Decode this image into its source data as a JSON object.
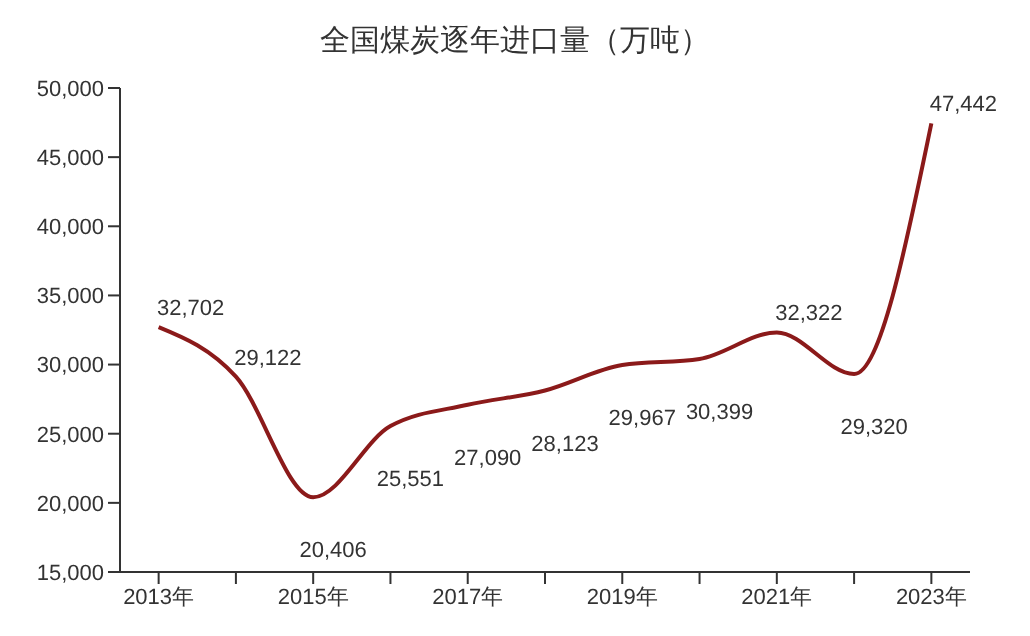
{
  "chart_data": {
    "type": "line",
    "title": "全国煤炭逐年进口量（万吨）",
    "categories": [
      "2013年",
      null,
      "2015年",
      null,
      "2017年",
      null,
      "2019年",
      null,
      "2021年",
      null,
      "2023年"
    ],
    "series": [
      {
        "color": "#8b1a1a",
        "values": [
          32702,
          29122,
          20406,
          25551,
          27090,
          28123,
          29967,
          30399,
          32322,
          29320,
          47442
        ],
        "value_labels": [
          "32,702",
          "29,122",
          "20,406",
          "25,551",
          "27,090",
          "28,123",
          "29,967",
          "30,399",
          "32,322",
          "29,320",
          "47,442"
        ]
      }
    ],
    "ylim": [
      15000,
      50000
    ],
    "yticks": [
      {
        "value": 15000,
        "label": "15,000"
      },
      {
        "value": 20000,
        "label": "20,000"
      },
      {
        "value": 25000,
        "label": "25,000"
      },
      {
        "value": 30000,
        "label": "30,000"
      },
      {
        "value": 35000,
        "label": "35,000"
      },
      {
        "value": 40000,
        "label": "40,000"
      },
      {
        "value": 45000,
        "label": "45,000"
      },
      {
        "value": 50000,
        "label": "50,000"
      }
    ],
    "grid": false,
    "legend": false,
    "marker": "none",
    "line_style": "solid"
  }
}
